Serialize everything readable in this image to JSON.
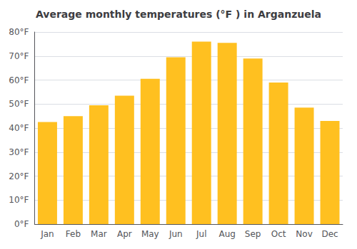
{
  "chart_data": {
    "type": "bar",
    "title": "Average monthly temperatures (°F ) in Arganzuela",
    "categories": [
      "Jan",
      "Feb",
      "Mar",
      "Apr",
      "May",
      "Jun",
      "Jul",
      "Aug",
      "Sep",
      "Oct",
      "Nov",
      "Dec"
    ],
    "values": [
      42.5,
      45,
      49.5,
      53.5,
      60.5,
      69.5,
      76,
      75.5,
      69,
      59,
      48.5,
      43
    ],
    "color": "#FFC020",
    "ylim": [
      0,
      80
    ],
    "yticks": [
      {
        "value": 0,
        "label": "0°F"
      },
      {
        "value": 10,
        "label": "10°F"
      },
      {
        "value": 20,
        "label": "20°F"
      },
      {
        "value": 30,
        "label": "30°F"
      },
      {
        "value": 40,
        "label": "40°F"
      },
      {
        "value": 50,
        "label": "50°F"
      },
      {
        "value": 60,
        "label": "60°F"
      },
      {
        "value": 70,
        "label": "70°F"
      },
      {
        "value": 80,
        "label": "80°F"
      }
    ],
    "grid": true
  }
}
